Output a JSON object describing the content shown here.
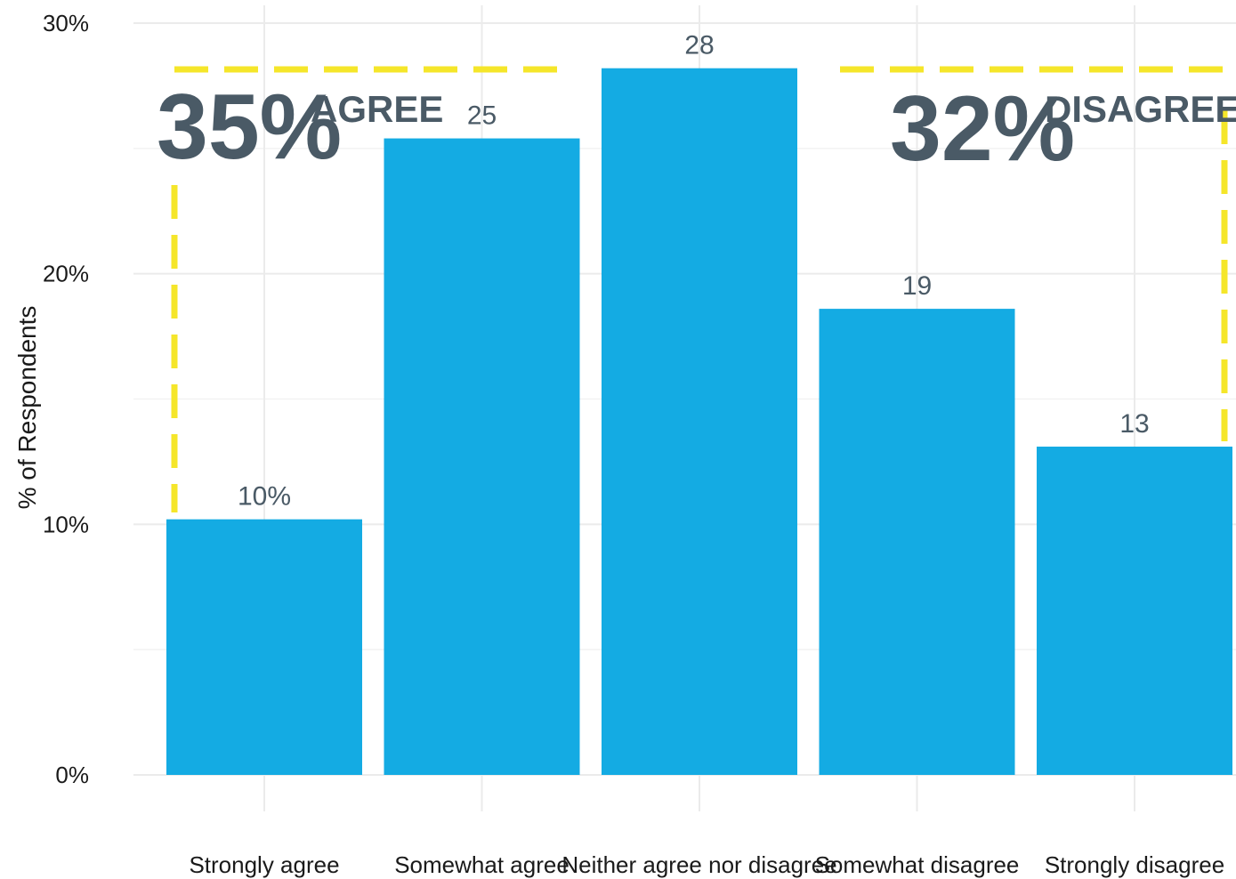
{
  "chart_data": {
    "type": "bar",
    "categories": [
      "Strongly agree",
      "Somewhat agree",
      "Neither agree nor disagree",
      "Somewhat disagree",
      "Strongly disagree"
    ],
    "values": [
      10.2,
      25.4,
      28.2,
      18.6,
      13.1
    ],
    "data_labels": [
      "10%",
      "25",
      "28",
      "19",
      "13"
    ],
    "ylabel": "% of Respondents",
    "ylim": [
      0,
      30
    ],
    "yticks": [
      0,
      10,
      20,
      30
    ],
    "ytick_labels": [
      "0%",
      "10%",
      "20%",
      "30%"
    ],
    "grid": true,
    "colors": {
      "bar": "#14ABE3",
      "highlight_box": "#F5E62A",
      "annotation_text": "#4A5A66",
      "grid": "#EBEBEB"
    },
    "annotations": [
      {
        "value": "35%",
        "word": "AGREE",
        "groups": [
          "Strongly agree",
          "Somewhat agree"
        ]
      },
      {
        "value": "32%",
        "word": "DISAGREE",
        "groups": [
          "Somewhat disagree",
          "Strongly disagree"
        ]
      }
    ]
  }
}
